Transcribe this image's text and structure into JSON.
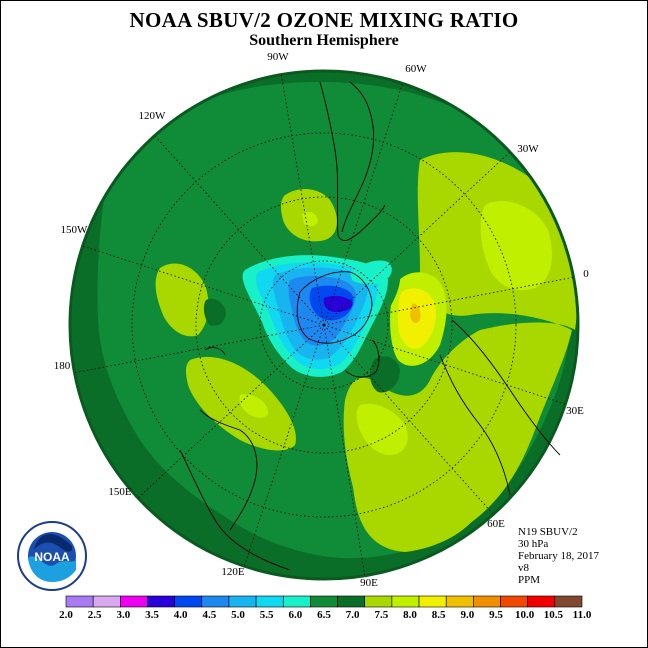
{
  "header": {
    "title": "NOAA SBUV/2 OZONE MIXING RATIO",
    "subtitle": "Southern Hemisphere"
  },
  "longitude_labels": [
    "90W",
    "60W",
    "30W",
    "0",
    "30E",
    "60E",
    "90E",
    "120E",
    "150E",
    "180",
    "150W",
    "120W"
  ],
  "info": {
    "instrument": "N19 SBUV/2",
    "level": "30 hPa",
    "date": "February 18, 2017",
    "version": "v8",
    "units": "PPM"
  },
  "colorbar": {
    "ticks": [
      "2.0",
      "2.5",
      "3.0",
      "3.5",
      "4.0",
      "4.5",
      "5.0",
      "5.5",
      "6.0",
      "6.5",
      "7.0",
      "7.5",
      "8.0",
      "8.5",
      "9.0",
      "9.5",
      "10.0",
      "10.5",
      "11.0"
    ],
    "colors": [
      "#a87cf0",
      "#d8a8f0",
      "#f000f0",
      "#2a00d8",
      "#0048f0",
      "#1c88f0",
      "#18b4f0",
      "#10d8f0",
      "#18f0c8",
      "#108c38",
      "#0a6e28",
      "#a8d800",
      "#c0f000",
      "#f0f000",
      "#f0c000",
      "#f09000",
      "#f04800",
      "#f00000",
      "#804830"
    ]
  },
  "logo": {
    "text": "NOAA"
  }
}
